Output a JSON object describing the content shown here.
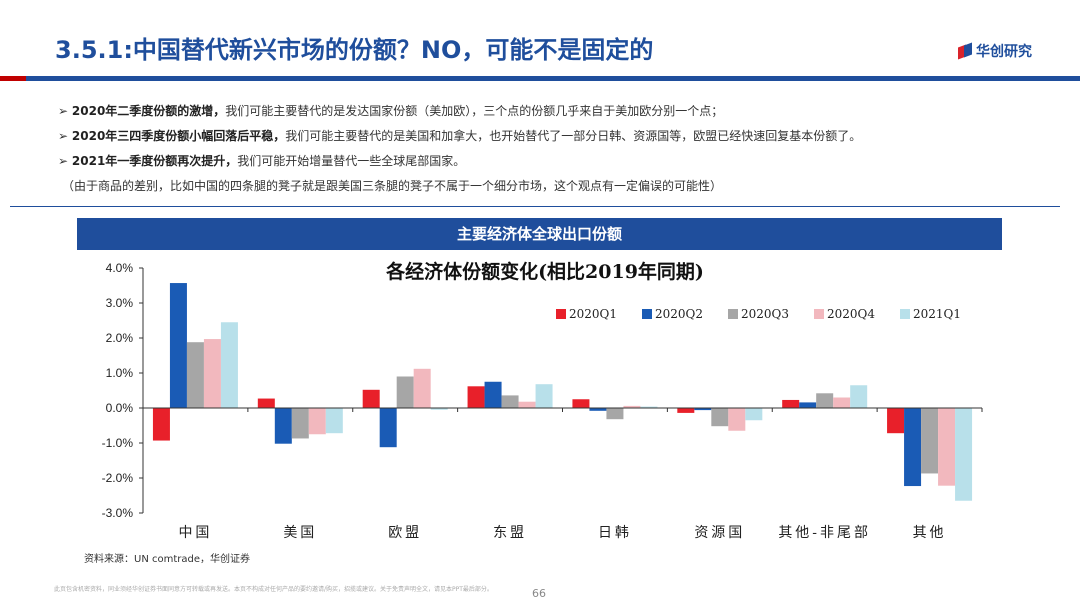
{
  "header": {
    "title": "3.5.1:中国替代新兴市场的份额？NO，可能不是固定的",
    "logo_text": "华创研究"
  },
  "bullets": [
    {
      "marker": "➢",
      "bold": "2020年二季度份额的激增，",
      "text": "我们可能主要替代的是发达国家份额（美加欧），三个点的份额几乎来自于美加欧分别一个点；"
    },
    {
      "marker": "➢",
      "bold": "2020年三四季度份额小幅回落后平稳，",
      "text": "我们可能主要替代的是美国和加拿大，也开始替代了一部分日韩、资源国等，欧盟已经快速回复基本份额了。"
    },
    {
      "marker": "➢",
      "bold": "2021年一季度份额再次提升，",
      "text": "我们可能开始增量替代一些全球尾部国家。"
    }
  ],
  "note": "（由于商品的差别，比如中国的四条腿的凳子就是跟美国三条腿的凳子不属于一个细分市场，这个观点有一定偏误的可能性）",
  "banner": "主要经济体全球出口份额",
  "chart_data": {
    "type": "bar",
    "title": "各经济体份额变化(相比2019年同期)",
    "xlabel": "",
    "ylabel": "",
    "ylim": [
      -0.03,
      0.04
    ],
    "yticks": [
      0.04,
      0.03,
      0.02,
      0.01,
      0.0,
      -0.01,
      -0.02,
      -0.03
    ],
    "ytick_labels": [
      "4.0%",
      "3.0%",
      "2.0%",
      "1.0%",
      "0.0%",
      "-1.0%",
      "-2.0%",
      "-3.0%"
    ],
    "legend_position": "top-right",
    "categories": [
      "中国",
      "美国",
      "欧盟",
      "东盟",
      "日韩",
      "资源国",
      "其他-非尾部",
      "其他"
    ],
    "series": [
      {
        "name": "2020Q1",
        "color": "#e8202a",
        "values": [
          -0.0093,
          0.0027,
          0.0052,
          0.0062,
          0.0025,
          -0.0014,
          0.0023,
          -0.0072
        ]
      },
      {
        "name": "2020Q2",
        "color": "#1a5bb5",
        "values": [
          0.0357,
          -0.0102,
          -0.0112,
          0.0075,
          -0.0008,
          -0.0006,
          0.0016,
          -0.0223
        ]
      },
      {
        "name": "2020Q3",
        "color": "#a6a6a6",
        "values": [
          0.0188,
          -0.0087,
          0.009,
          0.0036,
          -0.0032,
          -0.0052,
          0.0042,
          -0.0187
        ]
      },
      {
        "name": "2020Q4",
        "color": "#f2b8be",
        "values": [
          0.0197,
          -0.0075,
          0.0112,
          0.0018,
          0.0006,
          -0.0065,
          0.003,
          -0.0222
        ]
      },
      {
        "name": "2021Q1",
        "color": "#b8e0ea",
        "values": [
          0.0245,
          -0.0072,
          -0.0005,
          0.0068,
          0.0004,
          -0.0035,
          0.0065,
          -0.0265
        ]
      }
    ]
  },
  "source": "资料来源：UN comtrade，华创证券",
  "disclaimer": "此页包含机密资料，同业须经华创证券书面同意方可转载或再发送。本页不构成对任何产品的要约邀请/购买，招揽或建议。关于免责声明全文，请见本PPT最后部分。",
  "page_number": "66"
}
